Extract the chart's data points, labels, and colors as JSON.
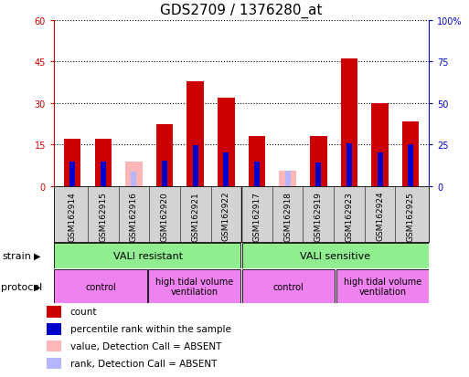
{
  "title": "GDS2709 / 1376280_at",
  "samples": [
    "GSM162914",
    "GSM162915",
    "GSM162916",
    "GSM162920",
    "GSM162921",
    "GSM162922",
    "GSM162917",
    "GSM162918",
    "GSM162919",
    "GSM162923",
    "GSM162924",
    "GSM162925"
  ],
  "count_values": [
    17.0,
    17.0,
    null,
    22.5,
    38.0,
    32.0,
    18.0,
    null,
    18.0,
    46.0,
    30.0,
    23.5
  ],
  "count_absent": [
    null,
    null,
    9.0,
    null,
    null,
    null,
    null,
    5.5,
    null,
    null,
    null,
    null
  ],
  "percentile_values": [
    15.0,
    15.0,
    null,
    15.5,
    24.5,
    20.5,
    15.0,
    null,
    14.0,
    25.5,
    20.0,
    25.0
  ],
  "percentile_absent": [
    null,
    null,
    8.5,
    null,
    null,
    null,
    null,
    9.5,
    null,
    null,
    null,
    null
  ],
  "count_color": "#cc0000",
  "percentile_color": "#0000cc",
  "count_absent_color": "#ffb6b6",
  "percentile_absent_color": "#b6b6ff",
  "ylim_left": [
    0,
    60
  ],
  "ylim_right": [
    0,
    100
  ],
  "yticks_left": [
    0,
    15,
    30,
    45,
    60
  ],
  "yticks_right": [
    0,
    25,
    50,
    75,
    100
  ],
  "yticklabels_left": [
    "0",
    "15",
    "30",
    "45",
    "60"
  ],
  "yticklabels_right": [
    "0",
    "25",
    "50",
    "75",
    "100%"
  ],
  "bg_color": "#d3d3d3",
  "plot_bg": "#ffffff",
  "tick_fontsize": 7,
  "title_fontsize": 11,
  "legend_labels": [
    "count",
    "percentile rank within the sample",
    "value, Detection Call = ABSENT",
    "rank, Detection Call = ABSENT"
  ],
  "legend_colors": [
    "#cc0000",
    "#0000cc",
    "#ffb6b6",
    "#b6b6ff"
  ]
}
